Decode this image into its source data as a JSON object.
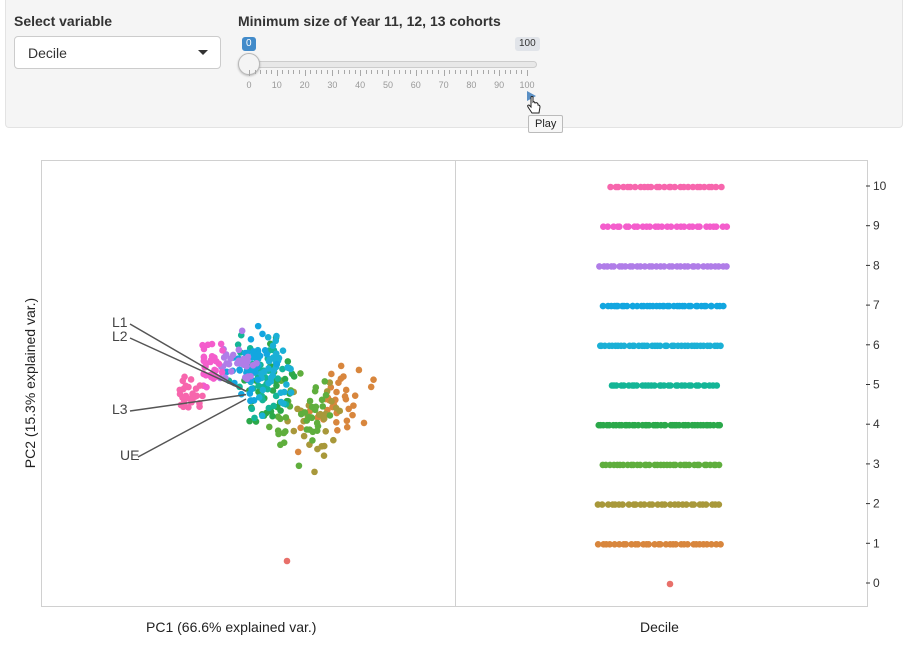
{
  "controls": {
    "select_label": "Select variable",
    "select_value": "Decile",
    "slider_label": "Minimum size of Year 11, 12, 13 cohorts",
    "slider_value": "0",
    "slider_max_badge": "100",
    "slider_ticks": [
      "0",
      "10",
      "20",
      "30",
      "40",
      "50",
      "60",
      "70",
      "80",
      "90",
      "100"
    ],
    "slider_fraction": 0,
    "play_tooltip": "Play"
  },
  "chart_data": [
    {
      "type": "scatter",
      "title": "",
      "xlabel": "PC1 (66.6% explained var.)",
      "ylabel": "PC2 (15.3% explained var.)",
      "loadings": [
        {
          "label": "L1",
          "end": [
            0.33,
            0.28
          ]
        },
        {
          "label": "L2",
          "end": [
            0.33,
            0.3
          ]
        },
        {
          "label": "L3",
          "end": [
            0.3,
            0.12
          ]
        },
        {
          "label": "UE",
          "end": [
            0.28,
            -0.1
          ]
        }
      ],
      "colors_by_decile": {
        "0": "#e8706a",
        "1": "#d8863d",
        "2": "#a8983a",
        "3": "#5fae3d",
        "4": "#2ba84a",
        "5": "#14b596",
        "6": "#1bb0d6",
        "7": "#12a6e0",
        "8": "#b07de8",
        "9": "#f45dcc",
        "10": "#f766ad"
      }
    },
    {
      "type": "scatter",
      "title": "",
      "xlabel": "Decile",
      "ylabel": "",
      "y_ticks": [
        "0",
        "1",
        "2",
        "3",
        "4",
        "5",
        "6",
        "7",
        "8",
        "9",
        "10"
      ],
      "ylim": [
        0,
        10
      ],
      "grid": false
    }
  ]
}
